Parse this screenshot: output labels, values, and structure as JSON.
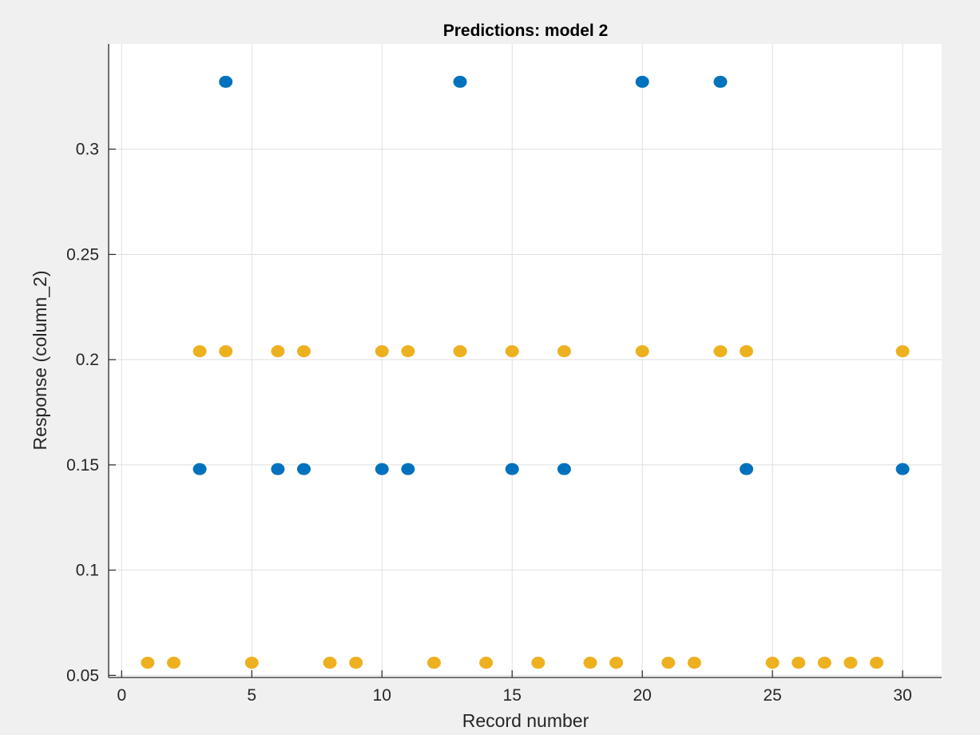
{
  "chart_data": {
    "type": "scatter",
    "title": "Predictions: model 2",
    "xlabel": "Record number",
    "ylabel": "Response (column_2)",
    "xlim": [
      -0.5,
      31.5
    ],
    "ylim": [
      0.049,
      0.35
    ],
    "xticks": [
      0,
      5,
      10,
      15,
      20,
      25,
      30
    ],
    "xtick_labels": [
      "0",
      "5",
      "10",
      "15",
      "20",
      "25",
      "30"
    ],
    "yticks": [
      0.05,
      0.1,
      0.15,
      0.2,
      0.25,
      0.3
    ],
    "ytick_labels": [
      "0.05",
      "0.1",
      "0.15",
      "0.2",
      "0.25",
      "0.3"
    ],
    "grid": true,
    "series": [
      {
        "color": "#0072bd",
        "points": [
          [
            3,
            0.148
          ],
          [
            4,
            0.332
          ],
          [
            6,
            0.148
          ],
          [
            7,
            0.148
          ],
          [
            10,
            0.148
          ],
          [
            11,
            0.148
          ],
          [
            13,
            0.332
          ],
          [
            15,
            0.148
          ],
          [
            17,
            0.148
          ],
          [
            20,
            0.332
          ],
          [
            23,
            0.332
          ],
          [
            24,
            0.148
          ],
          [
            30,
            0.148
          ]
        ]
      },
      {
        "color": "#edb120",
        "points": [
          [
            1,
            0.056
          ],
          [
            2,
            0.056
          ],
          [
            3,
            0.204
          ],
          [
            4,
            0.204
          ],
          [
            5,
            0.056
          ],
          [
            6,
            0.204
          ],
          [
            7,
            0.204
          ],
          [
            8,
            0.056
          ],
          [
            9,
            0.056
          ],
          [
            10,
            0.204
          ],
          [
            11,
            0.204
          ],
          [
            12,
            0.056
          ],
          [
            13,
            0.204
          ],
          [
            14,
            0.056
          ],
          [
            15,
            0.204
          ],
          [
            16,
            0.056
          ],
          [
            17,
            0.204
          ],
          [
            18,
            0.056
          ],
          [
            19,
            0.056
          ],
          [
            20,
            0.204
          ],
          [
            21,
            0.056
          ],
          [
            22,
            0.056
          ],
          [
            23,
            0.204
          ],
          [
            24,
            0.204
          ],
          [
            25,
            0.056
          ],
          [
            26,
            0.056
          ],
          [
            27,
            0.056
          ],
          [
            28,
            0.056
          ],
          [
            29,
            0.056
          ],
          [
            30,
            0.204
          ]
        ]
      }
    ]
  }
}
